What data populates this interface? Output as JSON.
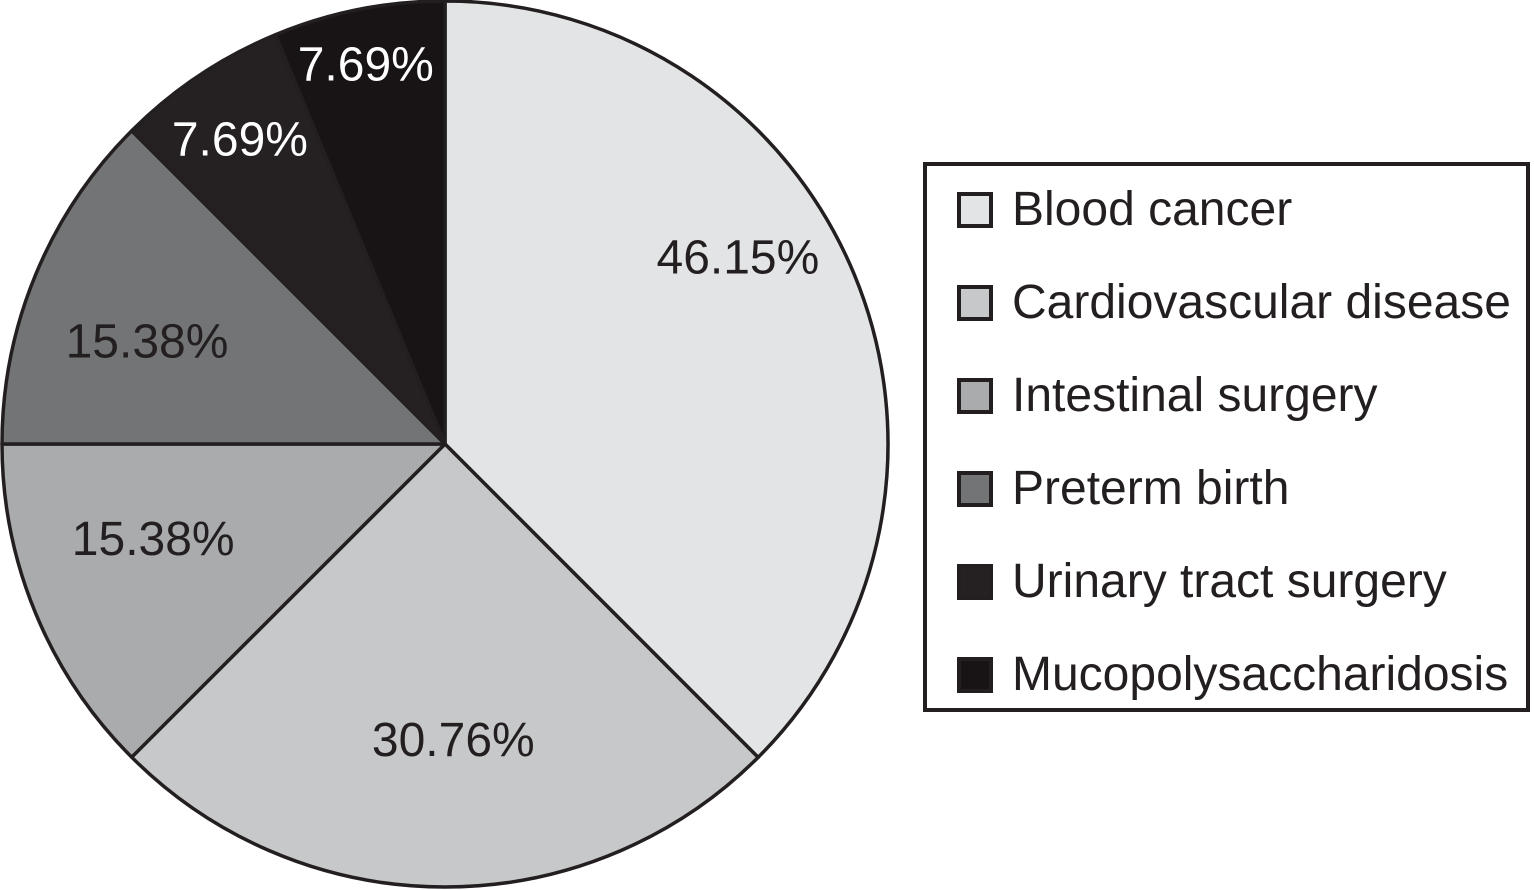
{
  "chart_data": {
    "type": "pie",
    "title": "",
    "legend_position": "right",
    "direction": "clockwise",
    "start_angle_deg": 0,
    "background": "#ffffff",
    "outline_color": "#231f20",
    "label_text_dark": "#231f20",
    "label_text_light": "#ffffff",
    "series": [
      {
        "label": "Blood cancer",
        "value": 46.15,
        "display": "46.15%",
        "color": "#e3e4e5",
        "label_color": "#231f20"
      },
      {
        "label": "Cardiovascular disease",
        "value": 30.76,
        "display": "30.76%",
        "color": "#c7c8c9",
        "label_color": "#231f20"
      },
      {
        "label": "Intestinal surgery",
        "value": 15.38,
        "display": "15.38%",
        "color": "#a9abad",
        "label_color": "#231f20"
      },
      {
        "label": "Preterm birth",
        "value": 15.38,
        "display": "15.38%",
        "color": "#737476",
        "label_color": "#231f20"
      },
      {
        "label": "Urinary tract surgery",
        "value": 7.69,
        "display": "7.69%",
        "color": "#252122",
        "label_color": "#ffffff"
      },
      {
        "label": "Mucopolysaccharidosis",
        "value": 7.69,
        "display": "7.69%",
        "color": "#181415",
        "label_color": "#ffffff"
      }
    ]
  }
}
